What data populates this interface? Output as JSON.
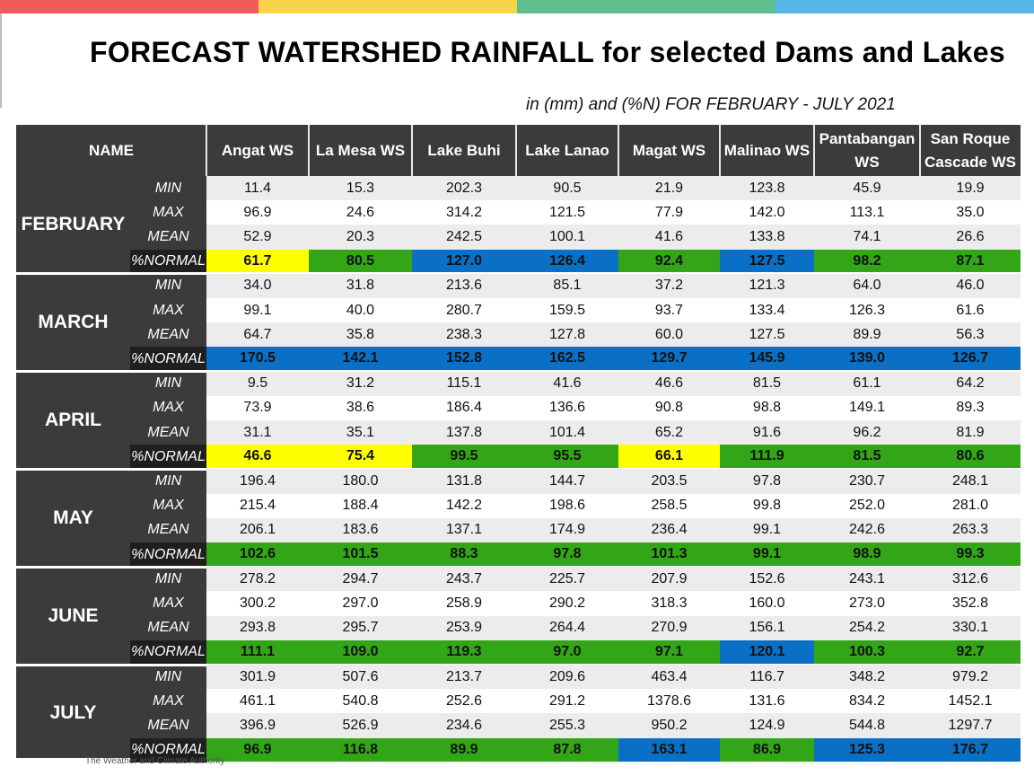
{
  "colors": {
    "topbar": [
      "#f05a5b",
      "#f9d448",
      "#5fbf8e",
      "#56b6e6"
    ],
    "yellow": "#ffff00",
    "green": "#33a618",
    "blue": "#0a70c6",
    "row_gray": "#ececec",
    "row_white": "#ffffff",
    "table_dark": "#3b3b3b"
  },
  "title": "FORECAST WATERSHED RAINFALL  for selected Dams and Lakes",
  "subtitle": "in (mm) and (%N) FOR FEBRUARY - JULY 2021",
  "footer": "The Weather and Climate Authority",
  "header": {
    "name": "NAME",
    "columns": [
      {
        "line1": "Angat WS",
        "line2": ""
      },
      {
        "line1": "La Mesa WS",
        "line2": ""
      },
      {
        "line1": "Lake Buhi",
        "line2": ""
      },
      {
        "line1": "Lake Lanao",
        "line2": ""
      },
      {
        "line1": "Magat WS",
        "line2": ""
      },
      {
        "line1": "Malinao WS",
        "line2": ""
      },
      {
        "line1": "Pantabangan",
        "line2": "WS"
      },
      {
        "line1": "San Roque",
        "line2": "Cascade WS"
      }
    ]
  },
  "row_labels": [
    "MIN",
    "MAX",
    "MEAN",
    "%NORMAL"
  ],
  "months": [
    {
      "name": "FEBRUARY",
      "rows": [
        [
          "11.4",
          "15.3",
          "202.3",
          "90.5",
          "21.9",
          "123.8",
          "45.9",
          "19.9"
        ],
        [
          "96.9",
          "24.6",
          "314.2",
          "121.5",
          "77.9",
          "142.0",
          "113.1",
          "35.0"
        ],
        [
          "52.9",
          "20.3",
          "242.5",
          "100.1",
          "41.6",
          "133.8",
          "74.1",
          "26.6"
        ],
        [
          "61.7",
          "80.5",
          "127.0",
          "126.4",
          "92.4",
          "127.5",
          "98.2",
          "87.1"
        ]
      ],
      "normal_colors": [
        "yellow",
        "green",
        "blue",
        "blue",
        "green",
        "blue",
        "green",
        "green"
      ]
    },
    {
      "name": "MARCH",
      "rows": [
        [
          "34.0",
          "31.8",
          "213.6",
          "85.1",
          "37.2",
          "121.3",
          "64.0",
          "46.0"
        ],
        [
          "99.1",
          "40.0",
          "280.7",
          "159.5",
          "93.7",
          "133.4",
          "126.3",
          "61.6"
        ],
        [
          "64.7",
          "35.8",
          "238.3",
          "127.8",
          "60.0",
          "127.5",
          "89.9",
          "56.3"
        ],
        [
          "170.5",
          "142.1",
          "152.8",
          "162.5",
          "129.7",
          "145.9",
          "139.0",
          "126.7"
        ]
      ],
      "normal_colors": [
        "blue",
        "blue",
        "blue",
        "blue",
        "blue",
        "blue",
        "blue",
        "blue"
      ]
    },
    {
      "name": "APRIL",
      "rows": [
        [
          "9.5",
          "31.2",
          "115.1",
          "41.6",
          "46.6",
          "81.5",
          "61.1",
          "64.2"
        ],
        [
          "73.9",
          "38.6",
          "186.4",
          "136.6",
          "90.8",
          "98.8",
          "149.1",
          "89.3"
        ],
        [
          "31.1",
          "35.1",
          "137.8",
          "101.4",
          "65.2",
          "91.6",
          "96.2",
          "81.9"
        ],
        [
          "46.6",
          "75.4",
          "99.5",
          "95.5",
          "66.1",
          "111.9",
          "81.5",
          "80.6"
        ]
      ],
      "normal_colors": [
        "yellow",
        "yellow",
        "green",
        "green",
        "yellow",
        "green",
        "green",
        "green"
      ]
    },
    {
      "name": "MAY",
      "rows": [
        [
          "196.4",
          "180.0",
          "131.8",
          "144.7",
          "203.5",
          "97.8",
          "230.7",
          "248.1"
        ],
        [
          "215.4",
          "188.4",
          "142.2",
          "198.6",
          "258.5",
          "99.8",
          "252.0",
          "281.0"
        ],
        [
          "206.1",
          "183.6",
          "137.1",
          "174.9",
          "236.4",
          "99.1",
          "242.6",
          "263.3"
        ],
        [
          "102.6",
          "101.5",
          "88.3",
          "97.8",
          "101.3",
          "99.1",
          "98.9",
          "99.3"
        ]
      ],
      "normal_colors": [
        "green",
        "green",
        "green",
        "green",
        "green",
        "green",
        "green",
        "green"
      ]
    },
    {
      "name": "JUNE",
      "rows": [
        [
          "278.2",
          "294.7",
          "243.7",
          "225.7",
          "207.9",
          "152.6",
          "243.1",
          "312.6"
        ],
        [
          "300.2",
          "297.0",
          "258.9",
          "290.2",
          "318.3",
          "160.0",
          "273.0",
          "352.8"
        ],
        [
          "293.8",
          "295.7",
          "253.9",
          "264.4",
          "270.9",
          "156.1",
          "254.2",
          "330.1"
        ],
        [
          "111.1",
          "109.0",
          "119.3",
          "97.0",
          "97.1",
          "120.1",
          "100.3",
          "92.7"
        ]
      ],
      "normal_colors": [
        "green",
        "green",
        "green",
        "green",
        "green",
        "blue",
        "green",
        "green"
      ]
    },
    {
      "name": "JULY",
      "rows": [
        [
          "301.9",
          "507.6",
          "213.7",
          "209.6",
          "463.4",
          "116.7",
          "348.2",
          "979.2"
        ],
        [
          "461.1",
          "540.8",
          "252.6",
          "291.2",
          "1378.6",
          "131.6",
          "834.2",
          "1452.1"
        ],
        [
          "396.9",
          "526.9",
          "234.6",
          "255.3",
          "950.2",
          "124.9",
          "544.8",
          "1297.7"
        ],
        [
          "96.9",
          "116.8",
          "89.9",
          "87.8",
          "163.1",
          "86.9",
          "125.3",
          "176.7"
        ]
      ],
      "normal_colors": [
        "green",
        "green",
        "green",
        "green",
        "blue",
        "green",
        "blue",
        "blue"
      ]
    }
  ]
}
